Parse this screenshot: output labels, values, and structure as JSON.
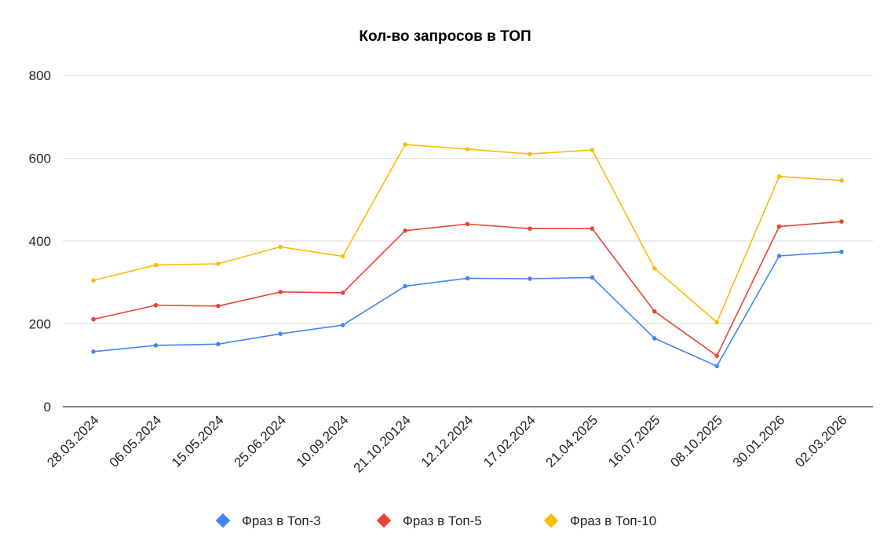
{
  "chart_data": {
    "type": "line",
    "title": "Кол-во запросов в ТОП",
    "xlabel": "",
    "ylabel": "",
    "categories": [
      "28.03.2024",
      "06.05.2024",
      "15.05.2024",
      "25.06.2024",
      "10.09.2024",
      "21.10.20124",
      "12.12.2024",
      "17.02.2024",
      "21.04.2025",
      "16.07.2025",
      "08.10.2025",
      "30.01.2026",
      "02.03.2026"
    ],
    "ylim": [
      0,
      800
    ],
    "yticks": [
      0,
      200,
      400,
      600,
      800
    ],
    "grid": true,
    "legend_position": "bottom",
    "series": [
      {
        "name": "Фраз в Топ-3",
        "color": "#4285f4",
        "values": [
          133,
          148,
          151,
          176,
          197,
          291,
          310,
          309,
          312,
          165,
          98,
          364,
          374
        ]
      },
      {
        "name": "Фраз в Топ-5",
        "color": "#ea4335",
        "values": [
          211,
          245,
          243,
          277,
          275,
          425,
          441,
          430,
          430,
          230,
          123,
          435,
          447
        ]
      },
      {
        "name": "Фраз в Топ-10",
        "color": "#fbbc04",
        "values": [
          305,
          342,
          345,
          386,
          363,
          633,
          622,
          610,
          620,
          334,
          204,
          556,
          546
        ]
      }
    ]
  }
}
